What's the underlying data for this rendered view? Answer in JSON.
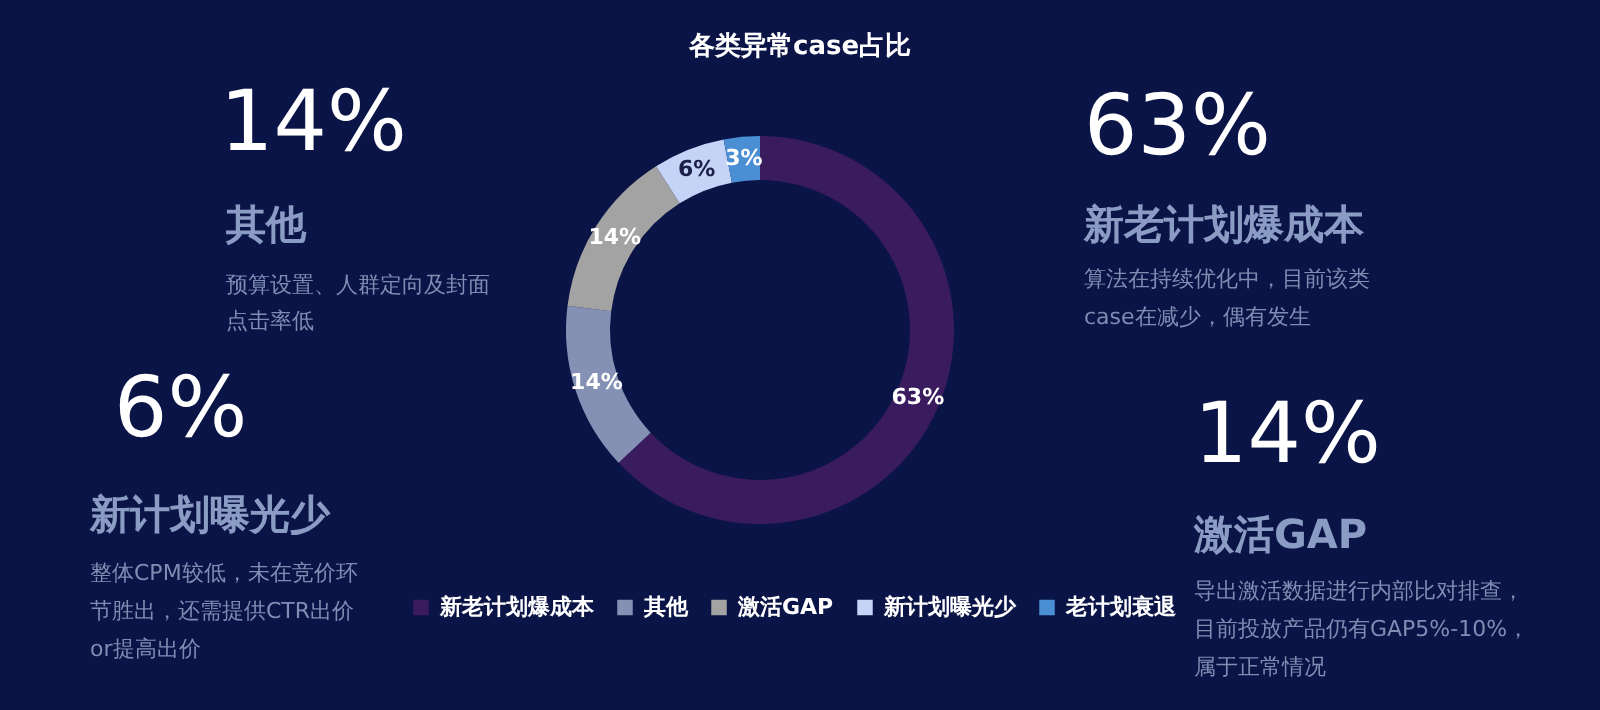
{
  "chart_data": {
    "type": "donut",
    "title": "各类异常case占比",
    "categories": [
      "新老计划爆成本",
      "其他",
      "激活GAP",
      "新计划曝光少",
      "老计划衰退"
    ],
    "values": [
      63,
      14,
      14,
      6,
      3
    ],
    "colors": [
      "#3a1c5e",
      "#8491b5",
      "#a3a3a3",
      "#c5d3f7",
      "#4a8fd4"
    ],
    "value_labels": [
      "63%",
      "14%",
      "14%",
      "6%",
      "3%"
    ],
    "legend": "bottom",
    "annotations": [
      "14%",
      "其他",
      "预算设置、人群定向及封面",
      "点击率低",
      "6%",
      "新计划曝光少",
      "整体CPM较低，未在竞价环",
      "节胜出，还需提供CTR出价",
      "or提高出价",
      "63%",
      "新老计划爆成本",
      "算法在持续优化中，目前该类",
      "case在减少，偶有发生",
      "14%",
      "激活GAP",
      "导出激活数据进行内部比对排查，",
      "目前投放产品仍有GAP5%-10%，",
      "属于正常情况"
    ]
  }
}
